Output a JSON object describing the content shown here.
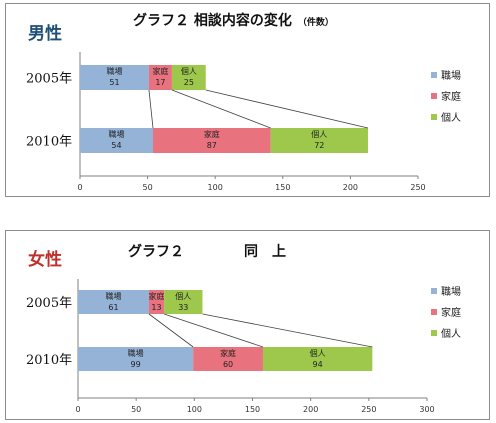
{
  "colors": {
    "職場": "#95b3d7",
    "家庭": "#e9727f",
    "個人": "#9dc84c",
    "male_label": "#1f4e79",
    "female_label": "#c0302a"
  },
  "chart_data": [
    {
      "type": "bar",
      "orientation": "horizontal",
      "stacked": true,
      "gender_label": "男性",
      "title": "グラフ２ 相談内容の変化",
      "title_note": "（件数）",
      "categories": [
        "2005年",
        "2010年"
      ],
      "series": [
        {
          "name": "職場",
          "values": [
            51,
            54
          ]
        },
        {
          "name": "家庭",
          "values": [
            17,
            87
          ]
        },
        {
          "name": "個人",
          "values": [
            25,
            72
          ]
        }
      ],
      "xlim": [
        0,
        250
      ],
      "xticks": [
        "0",
        "50",
        "100",
        "150",
        "200",
        "250"
      ],
      "legend": "right",
      "grid": false
    },
    {
      "type": "bar",
      "orientation": "horizontal",
      "stacked": true,
      "gender_label": "女性",
      "title": "グラフ２",
      "title_note": "同　上",
      "categories": [
        "2005年",
        "2010年"
      ],
      "series": [
        {
          "name": "職場",
          "values": [
            61,
            99
          ]
        },
        {
          "name": "家庭",
          "values": [
            13,
            60
          ]
        },
        {
          "name": "個人",
          "values": [
            33,
            94
          ]
        }
      ],
      "xlim": [
        0,
        300
      ],
      "xticks": [
        "0",
        "50",
        "100",
        "150",
        "200",
        "250",
        "300"
      ],
      "legend": "right",
      "grid": false
    }
  ]
}
